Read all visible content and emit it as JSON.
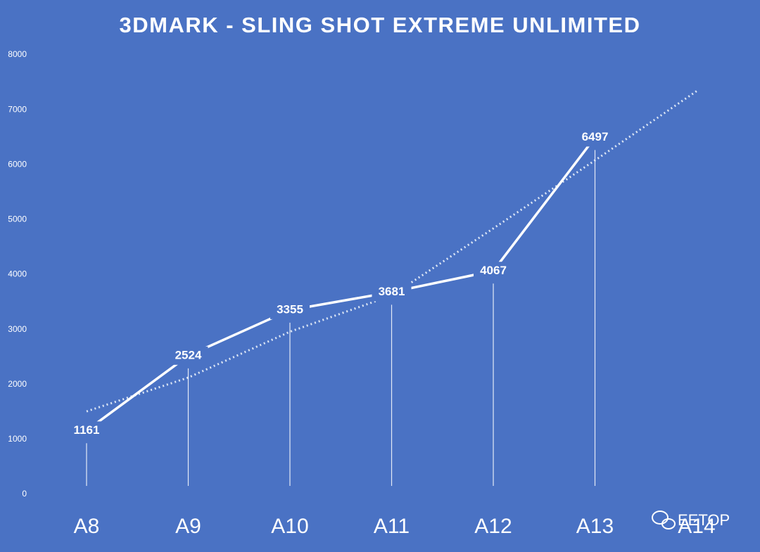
{
  "chart_data": {
    "type": "line",
    "title": "3DMARK - SLING SHOT EXTREME UNLIMITED",
    "categories": [
      "A8",
      "A9",
      "A10",
      "A11",
      "A12",
      "A13",
      "A14"
    ],
    "series": [
      {
        "color": "#ffffff",
        "values": [
          1161,
          2524,
          3355,
          3681,
          4067,
          6497,
          null
        ]
      }
    ],
    "trendline": {
      "color": "#dce6f5",
      "values": [
        1510,
        2125,
        2960,
        3620,
        4840,
        6080,
        7340
      ]
    },
    "ylim": [
      0,
      8000
    ],
    "yticks": [
      0,
      1000,
      2000,
      3000,
      4000,
      5000,
      6000,
      7000,
      8000
    ],
    "data_labels": true,
    "drop_lines": true,
    "grid": false,
    "watermark": "EETOP"
  }
}
